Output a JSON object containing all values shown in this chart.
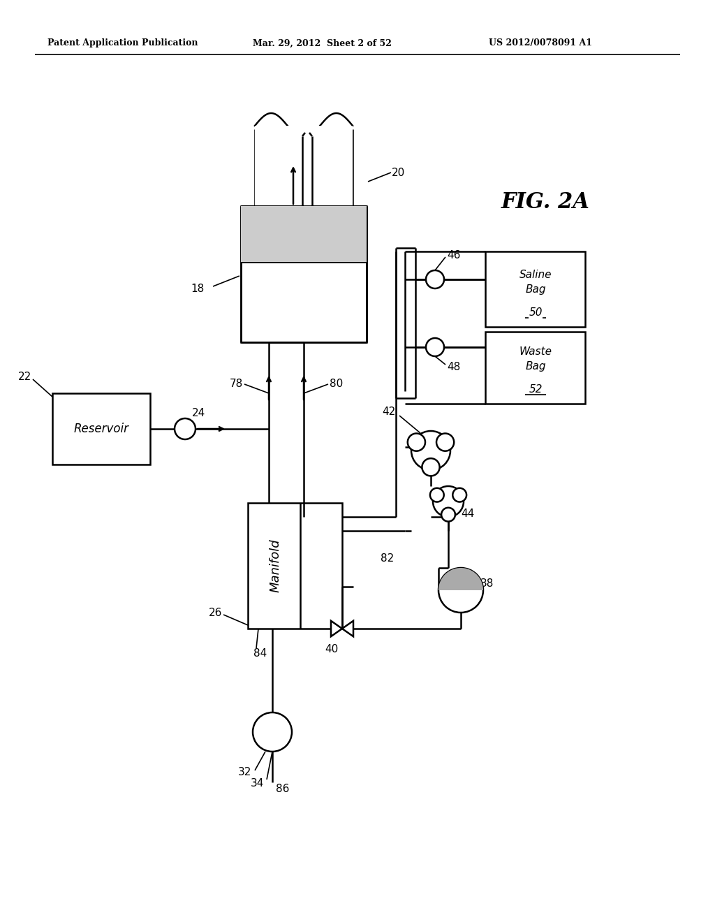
{
  "bg_color": "#ffffff",
  "header_left": "Patent Application Publication",
  "header_center": "Mar. 29, 2012  Sheet 2 of 52",
  "header_right": "US 2012/0078091 A1",
  "fig_label": "FIG. 2A"
}
